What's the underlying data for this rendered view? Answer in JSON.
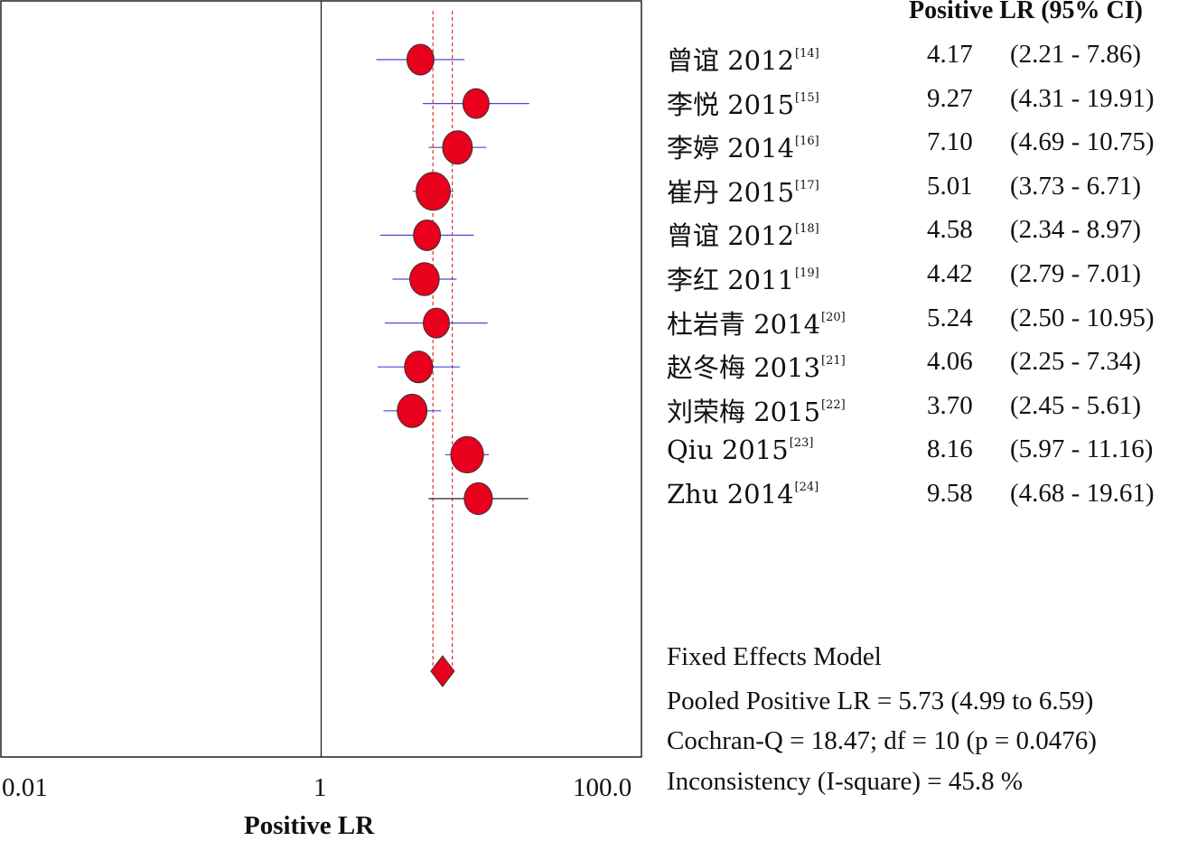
{
  "chart_data": {
    "type": "forest",
    "header": "Positive LR (95% CI)",
    "xlabel": "Positive LR",
    "x_scale": "log",
    "xlim": [
      0.01,
      100.0
    ],
    "x_ticks": [
      "0.01",
      "1",
      "100.0"
    ],
    "reference_line": 1,
    "studies": [
      {
        "name": "曾谊 2012",
        "ref": "[14]",
        "estimate": 4.17,
        "lower": 2.21,
        "upper": 7.86,
        "est_label": "4.17",
        "ci_label": "(2.21 - 7.86)",
        "weight": 0.55
      },
      {
        "name": "李悦 2015",
        "ref": "[15]",
        "estimate": 9.27,
        "lower": 4.31,
        "upper": 19.91,
        "est_label": "9.27",
        "ci_label": "(4.31 - 19.91)",
        "weight": 0.5
      },
      {
        "name": "李婷 2014",
        "ref": "[16]",
        "estimate": 7.1,
        "lower": 4.69,
        "upper": 10.75,
        "est_label": "7.10",
        "ci_label": "(4.69 - 10.75)",
        "weight": 0.72
      },
      {
        "name": "崔丹 2015",
        "ref": "[17]",
        "estimate": 5.01,
        "lower": 3.73,
        "upper": 6.71,
        "est_label": "5.01",
        "ci_label": "(3.73 - 6.71)",
        "weight": 1.0
      },
      {
        "name": "曾谊 2012",
        "ref": "[18]",
        "estimate": 4.58,
        "lower": 2.34,
        "upper": 8.97,
        "est_label": "4.58",
        "ci_label": "(2.34 - 8.97)",
        "weight": 0.55
      },
      {
        "name": "李红 2011",
        "ref": "[19]",
        "estimate": 4.42,
        "lower": 2.79,
        "upper": 7.01,
        "est_label": "4.42",
        "ci_label": "(2.79 - 7.01)",
        "weight": 0.7
      },
      {
        "name": "杜岩青 2014",
        "ref": "[20]",
        "estimate": 5.24,
        "lower": 2.5,
        "upper": 10.95,
        "est_label": "5.24",
        "ci_label": "(2.50 - 10.95)",
        "weight": 0.5
      },
      {
        "name": "赵冬梅 2013",
        "ref": "[21]",
        "estimate": 4.06,
        "lower": 2.25,
        "upper": 7.34,
        "est_label": "4.06",
        "ci_label": "(2.25 - 7.34)",
        "weight": 0.62
      },
      {
        "name": "刘荣梅 2015",
        "ref": "[22]",
        "estimate": 3.7,
        "lower": 2.45,
        "upper": 5.61,
        "est_label": "3.70",
        "ci_label": "(2.45 - 5.61)",
        "weight": 0.72
      },
      {
        "name": "Qiu 2015",
        "ref": "[23]",
        "estimate": 8.16,
        "lower": 5.97,
        "upper": 11.16,
        "est_label": "8.16",
        "ci_label": "(5.97 - 11.16)",
        "weight": 0.9
      },
      {
        "name": "Zhu 2014",
        "ref": "[24]",
        "estimate": 9.58,
        "lower": 4.68,
        "upper": 19.61,
        "est_label": "9.58",
        "ci_label": "(4.68 - 19.61)",
        "weight": 0.62
      }
    ],
    "pooled": {
      "estimate": 5.73,
      "lower": 4.99,
      "upper": 6.59
    },
    "summary_lines": [
      "Fixed Effects Model",
      "Pooled Positive LR = 5.73 (4.99 to 6.59)",
      "Cochran-Q = 18.47; df =  10 (p = 0.0476)",
      "Inconsistency (I-square) = 45.8 %"
    ],
    "colors": {
      "marker": "#e8001c",
      "ci_line": "#4a4ad8",
      "ci_line_last": "#222222",
      "pooled_line": "#e03030",
      "axis": "#222222"
    }
  }
}
